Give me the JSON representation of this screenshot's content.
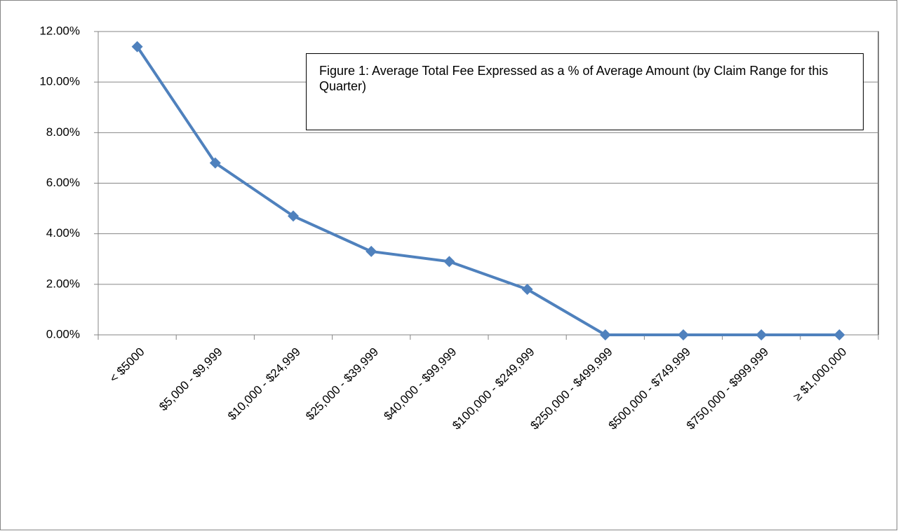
{
  "chart_data": {
    "type": "line",
    "title": "Figure 1: Average Total Fee Expressed as a % of Average Amount (by Claim Range for this Quarter)",
    "categories": [
      "< $5000",
      "$5,000 - $9,999",
      "$10,000 - $24,999",
      "$25,000 - $39,999",
      "$40,000 - $99,999",
      "$100,000 - $249,999",
      "$250,000 - $499,999",
      "$500,000 - $749,999",
      "$750,000 - $999,999",
      "≥ $1,000,000"
    ],
    "values": [
      11.4,
      6.8,
      4.7,
      3.3,
      2.9,
      1.8,
      0,
      0,
      0,
      0
    ],
    "color": "#4f81bd",
    "ylim": [
      0,
      12
    ],
    "yticks": [
      {
        "value": 0,
        "label": "0.00%"
      },
      {
        "value": 2,
        "label": "2.00%"
      },
      {
        "value": 4,
        "label": "4.00%"
      },
      {
        "value": 6,
        "label": "6.00%"
      },
      {
        "value": 8,
        "label": "8.00%"
      },
      {
        "value": 10,
        "label": "10.00%"
      },
      {
        "value": 12,
        "label": "12.00%"
      }
    ],
    "grid": true
  }
}
